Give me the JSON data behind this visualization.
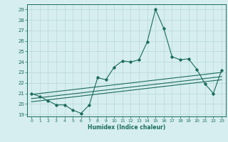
{
  "title": "",
  "xlabel": "Humidex (Indice chaleur)",
  "ylabel": "",
  "bg_color": "#d6eef0",
  "line_color": "#1a6b5a",
  "grid_color": "#b8d8d8",
  "xlim": [
    -0.5,
    23.5
  ],
  "ylim": [
    18.8,
    29.5
  ],
  "yticks": [
    19,
    20,
    21,
    22,
    23,
    24,
    25,
    26,
    27,
    28,
    29
  ],
  "xticks": [
    0,
    1,
    2,
    3,
    4,
    5,
    6,
    7,
    8,
    9,
    10,
    11,
    12,
    13,
    14,
    15,
    16,
    17,
    18,
    19,
    20,
    21,
    22,
    23
  ],
  "main_x": [
    0,
    1,
    2,
    3,
    4,
    5,
    6,
    7,
    8,
    9,
    10,
    11,
    12,
    13,
    14,
    15,
    16,
    17,
    18,
    19,
    20,
    21,
    22,
    23
  ],
  "main_y": [
    21.0,
    20.7,
    20.3,
    19.9,
    19.9,
    19.4,
    19.1,
    19.9,
    22.5,
    22.3,
    23.5,
    24.1,
    24.0,
    24.2,
    25.9,
    29.0,
    27.2,
    24.5,
    24.2,
    24.3,
    23.3,
    21.9,
    21.0,
    23.2
  ],
  "trend1_x": [
    0,
    23
  ],
  "trend1_y": [
    20.5,
    22.6
  ],
  "trend2_x": [
    0,
    23
  ],
  "trend2_y": [
    20.9,
    23.0
  ],
  "trend3_x": [
    0,
    23
  ],
  "trend3_y": [
    20.2,
    22.3
  ]
}
